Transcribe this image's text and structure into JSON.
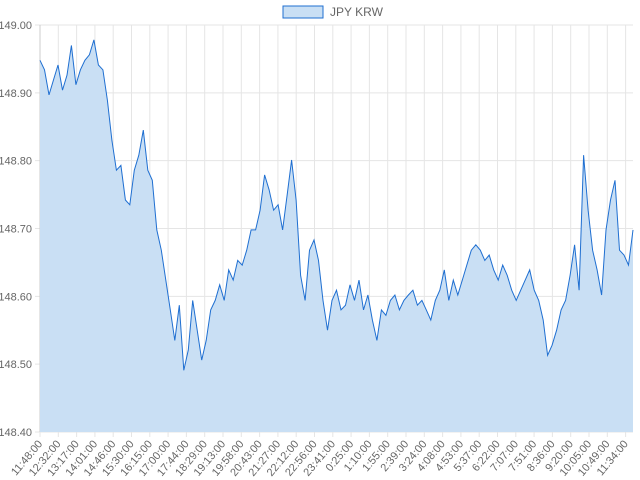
{
  "chart_data": {
    "type": "area",
    "title": "",
    "legend": {
      "position": "top",
      "entries": [
        "JPY KRW"
      ]
    },
    "series": [
      {
        "name": "JPY KRW",
        "color": "#1f6fd1",
        "fill": "#c9dff4",
        "values": [
          148.948,
          148.934,
          148.897,
          148.919,
          148.941,
          148.904,
          148.926,
          148.97,
          148.912,
          148.934,
          148.948,
          148.956,
          148.978,
          148.941,
          148.934,
          148.889,
          148.83,
          148.786,
          148.793,
          148.742,
          148.735,
          148.786,
          148.808,
          148.845,
          148.786,
          148.771,
          148.698,
          148.668,
          148.624,
          148.58,
          148.535,
          148.587,
          148.491,
          148.521,
          148.594,
          148.55,
          148.506,
          148.535,
          148.58,
          148.594,
          148.617,
          148.594,
          148.639,
          148.624,
          148.653,
          148.646,
          148.668,
          148.698,
          148.698,
          148.727,
          148.779,
          148.757,
          148.727,
          148.735,
          148.698,
          148.749,
          148.801,
          148.742,
          148.631,
          148.594,
          148.668,
          148.683,
          148.653,
          148.594,
          148.55,
          148.594,
          148.609,
          148.58,
          148.587,
          148.617,
          148.594,
          148.624,
          148.58,
          148.602,
          148.565,
          148.535,
          148.58,
          148.572,
          148.594,
          148.602,
          148.58,
          148.594,
          148.602,
          148.609,
          148.587,
          148.594,
          148.58,
          148.565,
          148.594,
          148.609,
          148.639,
          148.594,
          148.624,
          148.602,
          148.624,
          148.646,
          148.668,
          148.676,
          148.668,
          148.653,
          148.661,
          148.639,
          148.624,
          148.646,
          148.631,
          148.609,
          148.594,
          148.609,
          148.624,
          148.639,
          148.609,
          148.594,
          148.565,
          148.513,
          148.528,
          148.55,
          148.58,
          148.594,
          148.631,
          148.676,
          148.609,
          148.808,
          148.727,
          148.668,
          148.639,
          148.602,
          148.698,
          148.742,
          148.771,
          148.668,
          148.661,
          148.646,
          148.698
        ]
      }
    ],
    "x_tick_labels": [
      "11:48:00",
      "12:32:00",
      "13:17:00",
      "14:01:00",
      "14:46:00",
      "15:30:00",
      "16:15:00",
      "17:00:00",
      "17:44:00",
      "18:29:00",
      "19:13:00",
      "19:58:00",
      "20:43:00",
      "21:27:00",
      "22:12:00",
      "22:56:00",
      "23:41:00",
      "0:25:00",
      "1:10:00",
      "1:55:00",
      "2:39:00",
      "3:24:00",
      "4:08:00",
      "4:53:00",
      "5:37:00",
      "6:22:00",
      "7:07:00",
      "7:51:00",
      "8:36:00",
      "9:20:00",
      "10:05:00",
      "10:49:00",
      "11:34:00"
    ],
    "y_tick_labels": [
      "149.00",
      "148.90",
      "148.80",
      "148.70",
      "148.60",
      "148.50",
      "148.40"
    ],
    "y_ticks": [
      149.0,
      148.9,
      148.8,
      148.7,
      148.6,
      148.5,
      148.4
    ],
    "ylim": [
      148.4,
      149.0
    ],
    "xlabel": "",
    "ylabel": "",
    "grid": true
  }
}
